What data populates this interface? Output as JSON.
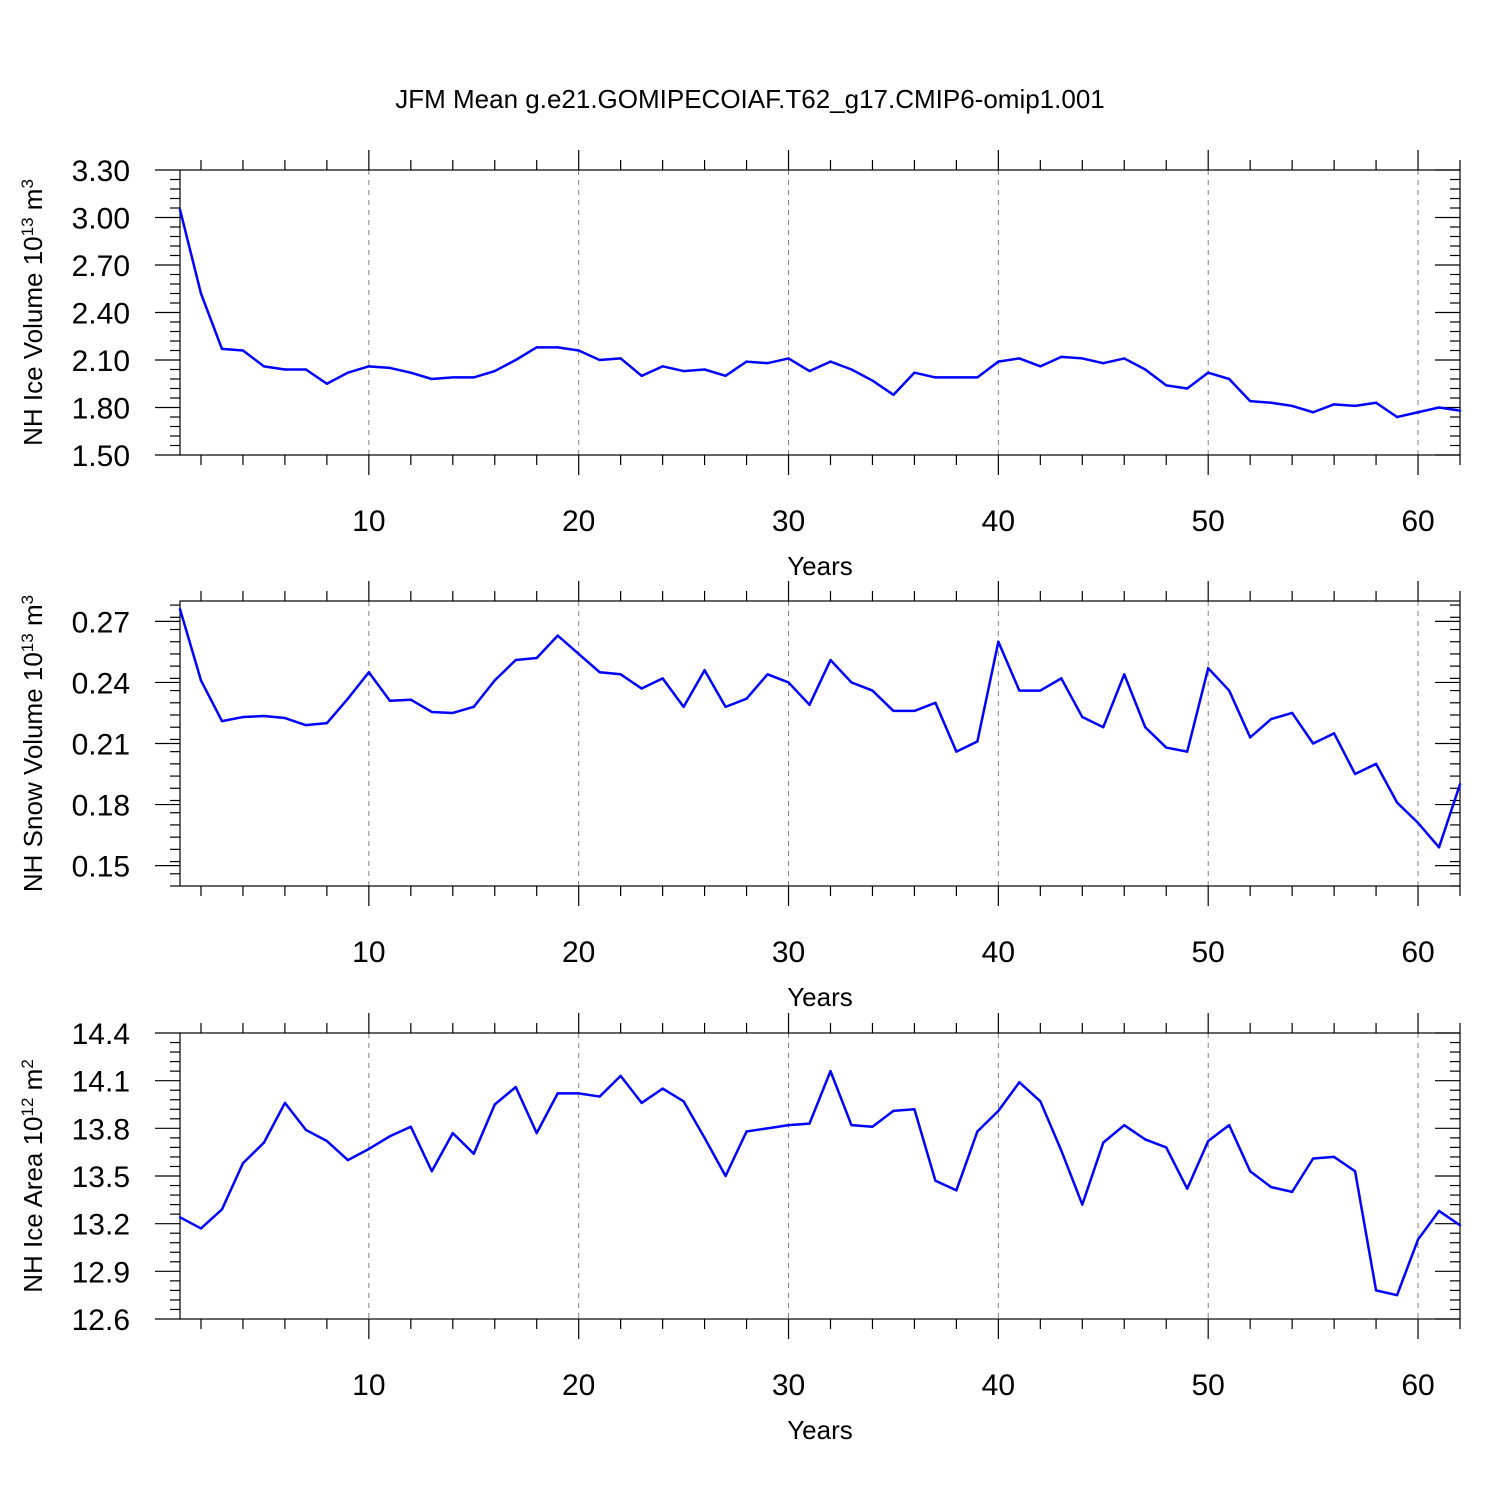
{
  "title": "JFM Mean g.e21.GOMIPECOIAF.T62_g17.CMIP6-omip1.001",
  "colors": {
    "series": "#0000ff",
    "grid": "#808080",
    "axes": "#000000"
  },
  "chart_data": [
    {
      "type": "line",
      "xlabel": "Years",
      "ylabel": {
        "main": "NH Ice Volume 10",
        "exp": "13",
        "unit": " m",
        "unit_exp": "3"
      },
      "xlim": [
        1,
        62
      ],
      "ylim": [
        1.5,
        3.3
      ],
      "xticks": [
        10,
        20,
        30,
        40,
        50,
        60
      ],
      "xtick_labels": [
        "10",
        "20",
        "30",
        "40",
        "50",
        "60"
      ],
      "yticks": [
        1.5,
        1.8,
        2.1,
        2.4,
        2.7,
        3.0,
        3.3
      ],
      "ytick_labels": [
        "1.50",
        "1.80",
        "2.10",
        "2.40",
        "2.70",
        "3.00",
        "3.30"
      ],
      "y_minor_step": 0.06,
      "grid": "vertical dashed at major x ticks",
      "series": [
        {
          "x_start": 1,
          "values": [
            3.05,
            2.52,
            2.17,
            2.16,
            2.06,
            2.04,
            2.04,
            1.95,
            2.02,
            2.06,
            2.05,
            2.02,
            1.98,
            1.99,
            1.99,
            2.03,
            2.1,
            2.18,
            2.18,
            2.16,
            2.1,
            2.11,
            2.0,
            2.06,
            2.03,
            2.04,
            2.0,
            2.09,
            2.08,
            2.11,
            2.03,
            2.09,
            2.04,
            1.97,
            1.88,
            2.02,
            1.99,
            1.99,
            1.99,
            2.09,
            2.11,
            2.06,
            2.12,
            2.11,
            2.08,
            2.11,
            2.04,
            1.94,
            1.92,
            2.02,
            1.98,
            1.84,
            1.83,
            1.81,
            1.77,
            1.82,
            1.81,
            1.83,
            1.74,
            1.77,
            1.8,
            1.78
          ]
        }
      ]
    },
    {
      "type": "line",
      "xlabel": "Years",
      "ylabel": {
        "main": "NH Snow Volume 10",
        "exp": "13",
        "unit": " m",
        "unit_exp": "3"
      },
      "xlim": [
        1,
        62
      ],
      "ylim": [
        0.14,
        0.28
      ],
      "xticks": [
        10,
        20,
        30,
        40,
        50,
        60
      ],
      "xtick_labels": [
        "10",
        "20",
        "30",
        "40",
        "50",
        "60"
      ],
      "yticks": [
        0.15,
        0.18,
        0.21,
        0.24,
        0.27
      ],
      "ytick_labels": [
        "0.15",
        "0.18",
        "0.21",
        "0.24",
        "0.27"
      ],
      "y_minor_step": 0.006,
      "grid": "vertical dashed at major x ticks",
      "series": [
        {
          "x_start": 1,
          "values": [
            0.276,
            0.241,
            0.221,
            0.223,
            0.2235,
            0.2225,
            0.219,
            0.22,
            0.232,
            0.245,
            0.231,
            0.2315,
            0.2255,
            0.225,
            0.228,
            0.241,
            0.251,
            0.252,
            0.263,
            0.254,
            0.245,
            0.244,
            0.237,
            0.242,
            0.228,
            0.246,
            0.228,
            0.232,
            0.244,
            0.24,
            0.229,
            0.251,
            0.24,
            0.236,
            0.226,
            0.226,
            0.23,
            0.206,
            0.211,
            0.26,
            0.236,
            0.236,
            0.242,
            0.223,
            0.218,
            0.244,
            0.218,
            0.208,
            0.206,
            0.247,
            0.236,
            0.213,
            0.222,
            0.225,
            0.21,
            0.215,
            0.195,
            0.2,
            0.181,
            0.171,
            0.159,
            0.19
          ]
        }
      ]
    },
    {
      "type": "line",
      "xlabel": "Years",
      "ylabel": {
        "main": "NH Ice Area 10",
        "exp": "12",
        "unit": " m",
        "unit_exp": "2"
      },
      "xlim": [
        1,
        62
      ],
      "ylim": [
        12.6,
        14.4
      ],
      "xticks": [
        10,
        20,
        30,
        40,
        50,
        60
      ],
      "xtick_labels": [
        "10",
        "20",
        "30",
        "40",
        "50",
        "60"
      ],
      "yticks": [
        12.6,
        12.9,
        13.2,
        13.5,
        13.8,
        14.1,
        14.4
      ],
      "ytick_labels": [
        "12.6",
        "12.9",
        "13.2",
        "13.5",
        "13.8",
        "14.1",
        "14.4"
      ],
      "y_minor_step": 0.06,
      "grid": "vertical dashed at major x ticks",
      "series": [
        {
          "x_start": 1,
          "values": [
            13.24,
            13.17,
            13.29,
            13.58,
            13.71,
            13.96,
            13.79,
            13.72,
            13.6,
            13.67,
            13.75,
            13.81,
            13.53,
            13.77,
            13.64,
            13.95,
            14.06,
            13.77,
            14.02,
            14.02,
            14.0,
            14.13,
            13.96,
            14.05,
            13.97,
            13.74,
            13.5,
            13.78,
            13.8,
            13.82,
            13.83,
            14.16,
            13.82,
            13.81,
            13.91,
            13.92,
            13.47,
            13.41,
            13.78,
            13.91,
            14.09,
            13.97,
            13.66,
            13.32,
            13.71,
            13.82,
            13.73,
            13.68,
            13.42,
            13.72,
            13.82,
            13.53,
            13.43,
            13.4,
            13.61,
            13.62,
            13.53,
            12.78,
            12.75,
            13.1,
            13.28,
            13.19
          ]
        }
      ]
    }
  ]
}
